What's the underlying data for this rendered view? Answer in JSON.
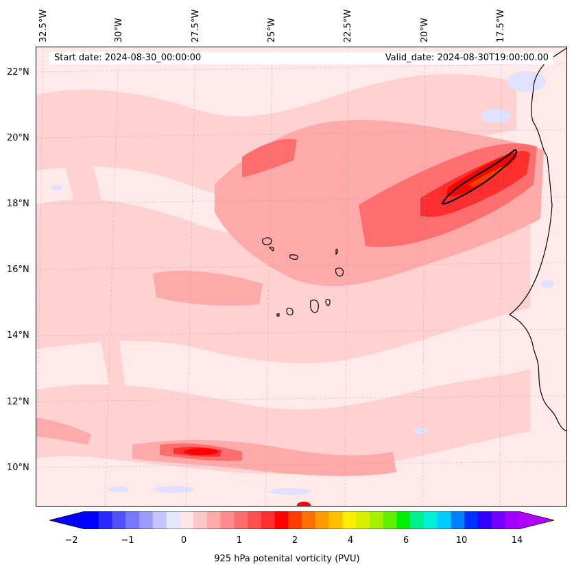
{
  "header": {
    "start_date": "Start date: 2024-08-30_00:00:00",
    "valid_date": "Valid_date: 2024-08-30T19:00:00.00"
  },
  "axes": {
    "lon_labels": [
      "32.5°W",
      "30°W",
      "27.5°W",
      "25°W",
      "22.5°W",
      "20°W",
      "17.5°W"
    ],
    "lat_labels": [
      "22°N",
      "20°N",
      "18°N",
      "16°N",
      "14°N",
      "12°N",
      "10°N"
    ]
  },
  "colorbar": {
    "title": "925 hPa potenital vorticity (PVU)",
    "tick_labels": [
      "−2",
      "−1",
      "0",
      "1",
      "2",
      "4",
      "6",
      "10",
      "14"
    ],
    "colors": [
      "#0000ff",
      "#2828ff",
      "#5050ff",
      "#7878ff",
      "#9c9cff",
      "#c4c4ff",
      "#e6e6ff",
      "#ffe6e6",
      "#ffc8c8",
      "#ffaaaa",
      "#ff8c8c",
      "#ff6e6e",
      "#ff5050",
      "#ff2e2e",
      "#ff0000",
      "#ff3c00",
      "#ff6e00",
      "#ff9a00",
      "#ffc000",
      "#ffee00",
      "#d8f000",
      "#a8f000",
      "#60f000",
      "#00f000",
      "#00f090",
      "#00f0d8",
      "#00ccff",
      "#0080ff",
      "#0030ff",
      "#3000ff",
      "#7000ff",
      "#a000ff"
    ],
    "extend_low_color": "#0000ff",
    "extend_high_color": "#b000ff"
  },
  "map_colors": {
    "background": "#ffe9e9",
    "weak_positive": "#ffd0d0",
    "moderate_positive": "#ffaaaa",
    "strong_positive": "#ff6e6e",
    "very_strong": "#ff2e2e",
    "peak": "#ff0000",
    "core": "#ff3c00",
    "negative": "#e0e0ff",
    "negative_strong": "#c0c0ff",
    "coastline": "#000000"
  }
}
